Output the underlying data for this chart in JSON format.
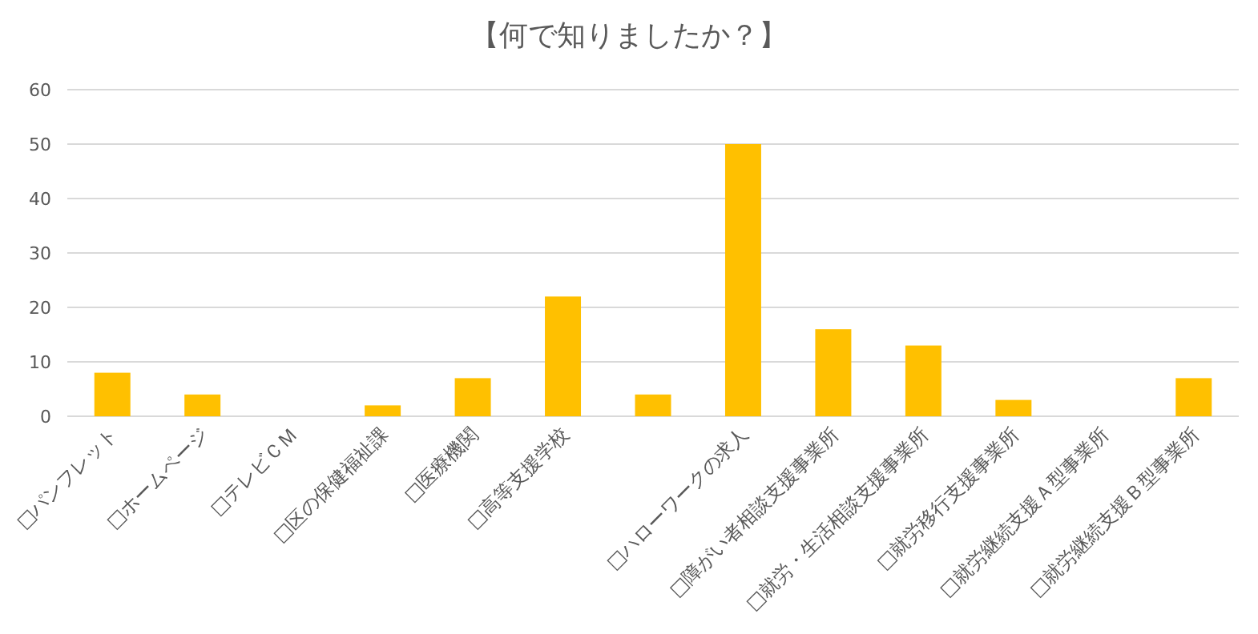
{
  "chart_data": {
    "type": "bar",
    "title": "【何で知りましたか？】",
    "categories": [
      "□パンフレット",
      "□ホームページ",
      "□テレビＣＭ",
      "□区の保健福祉課",
      "□医療機関",
      "□高等支援学校",
      null,
      "□ハローワークの求人",
      "□障がい者相談支援事業所",
      "□就労・生活相談支援事業所",
      "□就労移行支援事業所",
      "□就労継続支援Ａ型事業所",
      "□就労継続支援Ｂ型事業所"
    ],
    "values": [
      8,
      4,
      0,
      2,
      7,
      22,
      4,
      50,
      16,
      13,
      3,
      0,
      7
    ],
    "color": "#ffc000",
    "ylim": [
      0,
      60
    ],
    "yticks": [
      0,
      10,
      20,
      30,
      40,
      50,
      60
    ],
    "grid": "y"
  }
}
